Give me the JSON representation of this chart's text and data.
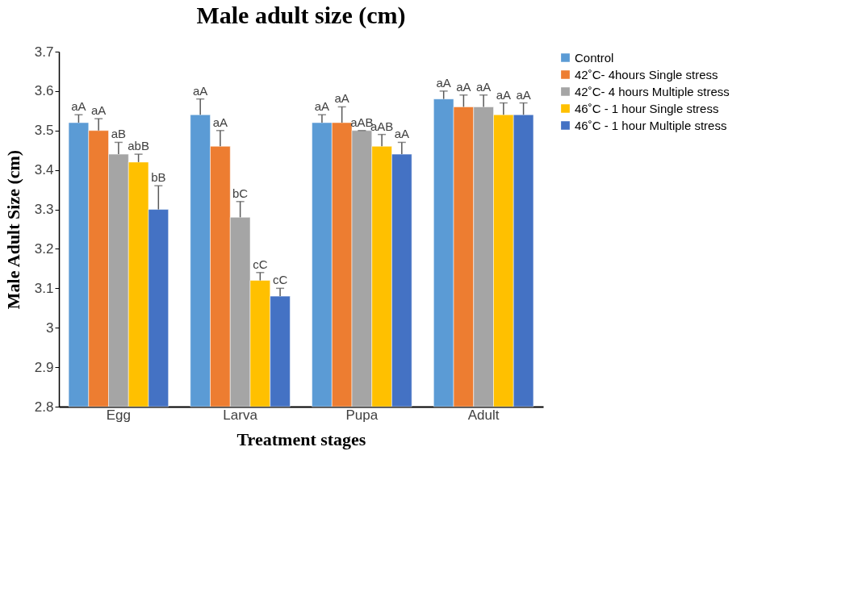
{
  "chart_data": {
    "type": "bar",
    "title": "Male adult size (cm)",
    "xlabel": "Treatment stages",
    "ylabel": "Male Adult Size (cm)",
    "categories": [
      "Egg",
      "Larva",
      "Pupa",
      "Adult"
    ],
    "series": [
      {
        "name": "Control",
        "color": "#5b9bd5",
        "values": [
          3.52,
          3.54,
          3.52,
          3.58
        ],
        "errors": [
          [
            3.52,
            3.54
          ],
          [
            3.54,
            3.58
          ],
          [
            3.52,
            3.54
          ],
          [
            3.58,
            3.6
          ]
        ],
        "value_labels": [
          "aA",
          "aA",
          "aA",
          "aA"
        ]
      },
      {
        "name": "42˚C- 4hours Single stress",
        "color": "#ed7d31",
        "values": [
          3.5,
          3.46,
          3.52,
          3.56
        ],
        "errors": [
          [
            3.5,
            3.53
          ],
          [
            3.46,
            3.5
          ],
          [
            3.52,
            3.56
          ],
          [
            3.56,
            3.59
          ]
        ],
        "value_labels": [
          "aA",
          "aA",
          "aA",
          "aA"
        ]
      },
      {
        "name": "42˚C- 4 hours Multiple stress",
        "color": "#a5a5a5",
        "values": [
          3.44,
          3.28,
          3.5,
          3.56
        ],
        "errors": [
          [
            3.44,
            3.47
          ],
          [
            3.28,
            3.32
          ],
          [
            3.5,
            3.5
          ],
          [
            3.56,
            3.59
          ]
        ],
        "value_labels": [
          "aB",
          "bC",
          "aAB",
          "aA"
        ]
      },
      {
        "name": "46˚C - 1 hour Single stress",
        "color": "#ffc000",
        "values": [
          3.42,
          3.12,
          3.46,
          3.54
        ],
        "errors": [
          [
            3.42,
            3.44
          ],
          [
            3.12,
            3.14
          ],
          [
            3.46,
            3.49
          ],
          [
            3.54,
            3.57
          ]
        ],
        "value_labels": [
          "abB",
          "cC",
          "aAB",
          "aA"
        ]
      },
      {
        "name": "46˚C - 1 hour Multiple stress",
        "color": "#4472c4",
        "values": [
          3.3,
          3.08,
          3.44,
          3.54
        ],
        "errors": [
          [
            3.3,
            3.36
          ],
          [
            3.08,
            3.1
          ],
          [
            3.44,
            3.47
          ],
          [
            3.54,
            3.57
          ]
        ],
        "value_labels": [
          "bB",
          "cC",
          "aA",
          "aA"
        ]
      }
    ],
    "ylim": [
      2.8,
      3.7
    ],
    "yticks": [
      2.8,
      2.9,
      3,
      3.1,
      3.2,
      3.3,
      3.4,
      3.5,
      3.6,
      3.7
    ],
    "grid": false,
    "legend": "right"
  }
}
